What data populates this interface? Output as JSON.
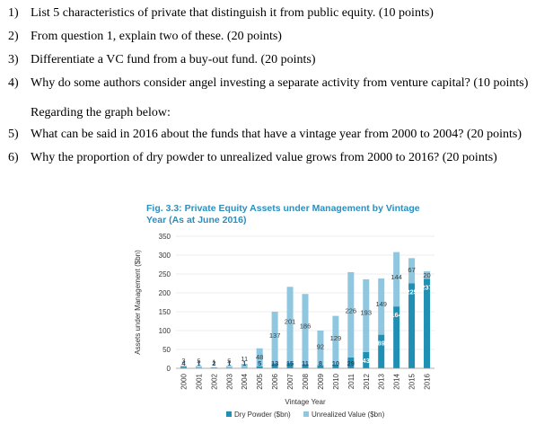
{
  "questions_top": [
    {
      "num": "1)",
      "text": "List 5 characteristics of private that distinguish it from public equity. (10 points)"
    },
    {
      "num": "2)",
      "text": "From question 1, explain two of these. (20 points)"
    },
    {
      "num": "3)",
      "text": "Differentiate a VC fund from a buy-out fund. (20 points)"
    },
    {
      "num": "4)",
      "text": "Why do some authors consider angel investing a separate activity from venture capital? (10 points)"
    }
  ],
  "section_heading": "Regarding the graph below:",
  "questions_bottom": [
    {
      "num": "5)",
      "text": "What can be said in 2016 about the funds that have a vintage year from 2000 to 2004? (20 points)"
    },
    {
      "num": "6)",
      "text": "Why the proportion of dry powder to unrealized value grows from 2000 to 2016? (20 points)"
    }
  ],
  "colors": {
    "dry": "#1f8fb3",
    "unrealized": "#8ec7df",
    "title": "#2a8fbf",
    "axis": "#444444"
  },
  "chart_data": {
    "type": "bar",
    "stacked": true,
    "title": "Fig. 3.3: Private Equity Assets under Management by Vintage Year (As at June 2016)",
    "xlabel": "Vintage Year",
    "ylabel": "Assets under Management ($bn)",
    "ylim": [
      0,
      350
    ],
    "yticks": [
      0,
      50,
      100,
      150,
      200,
      250,
      300,
      350
    ],
    "categories": [
      "2000",
      "2001",
      "2002",
      "2003",
      "2004",
      "2005",
      "2006",
      "2007",
      "2008",
      "2009",
      "2010",
      "2011",
      "2012",
      "2013",
      "2014",
      "2015",
      "2016"
    ],
    "series": [
      {
        "name": "Dry Powder ($bn)",
        "values": [
          4,
          1,
          2,
          1,
          1,
          5,
          13,
          15,
          11,
          8,
          10,
          29,
          43,
          89,
          164,
          225,
          237
        ]
      },
      {
        "name": "Unrealized Value ($bn)",
        "values": [
          3,
          5,
          1,
          5,
          11,
          48,
          137,
          201,
          186,
          92,
          129,
          226,
          193,
          149,
          144,
          67,
          20
        ]
      }
    ],
    "dry_labels": [
      "4",
      "1",
      "2",
      "1",
      "1",
      "5",
      "13",
      "15",
      "11",
      "8",
      "10",
      "29",
      "43",
      "89",
      "164",
      "225",
      "237"
    ],
    "unrealized_labels": [
      "3",
      "5",
      "1",
      "5",
      "11",
      "48",
      "137",
      "201",
      "186",
      "92",
      "129",
      "226",
      "193",
      "149",
      "144",
      "67",
      "20"
    ]
  }
}
